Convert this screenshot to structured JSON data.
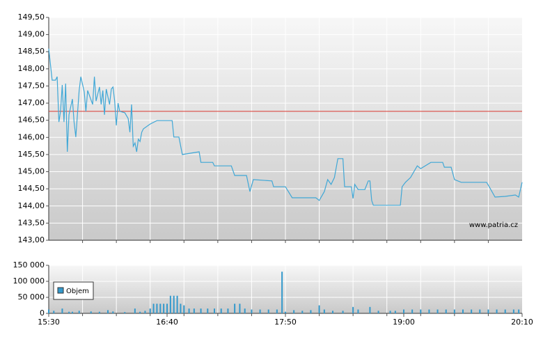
{
  "chart_data": [
    {
      "type": "line",
      "x": [
        "15:30",
        "15:32",
        "15:34",
        "15:35",
        "15:36",
        "15:37",
        "15:38",
        "15:39",
        "15:40",
        "15:41",
        "15:42",
        "15:44",
        "15:45",
        "15:46",
        "15:48",
        "15:49",
        "15:51",
        "15:52",
        "15:53",
        "15:56",
        "15:57",
        "15:58",
        "16:00",
        "16:01",
        "16:02",
        "16:03",
        "16:04",
        "16:06",
        "16:07",
        "16:08",
        "16:09",
        "16:10",
        "16:11",
        "16:12",
        "16:15",
        "16:17",
        "16:18",
        "16:19",
        "16:20",
        "16:21",
        "16:22",
        "16:23",
        "16:24",
        "16:25",
        "16:26",
        "16:30",
        "16:34",
        "16:43",
        "16:44",
        "16:47",
        "16:49",
        "16:59",
        "17:00",
        "17:07",
        "17:08",
        "17:18",
        "17:20",
        "17:27",
        "17:29",
        "17:31",
        "17:42",
        "17:43",
        "17:50",
        "17:54",
        "18:08",
        "18:10",
        "18:13",
        "18:15",
        "18:17",
        "18:19",
        "18:21",
        "18:24",
        "18:25",
        "18:29",
        "18:30",
        "18:31",
        "18:33",
        "18:37",
        "18:39",
        "18:40",
        "18:41",
        "18:42",
        "18:58",
        "18:59",
        "19:01",
        "19:04",
        "19:08",
        "19:10",
        "19:16",
        "19:23",
        "19:24",
        "19:28",
        "19:30",
        "19:34",
        "19:49",
        "19:51",
        "19:54",
        "20:00",
        "20:06",
        "20:08",
        "20:10"
      ],
      "series": [
        {
          "color": "#3fa7d6",
          "values": [
            148.59,
            147.67,
            147.67,
            147.77,
            146.45,
            146.76,
            147.53,
            146.45,
            147.57,
            145.58,
            146.66,
            147.12,
            146.45,
            146.01,
            147.37,
            147.77,
            147.33,
            146.76,
            147.37,
            146.96,
            147.77,
            147.06,
            147.47,
            146.96,
            147.37,
            146.66,
            147.41,
            146.96,
            147.41,
            147.47,
            147.06,
            146.35,
            147.0,
            146.76,
            146.72,
            146.55,
            146.15,
            146.96,
            145.74,
            145.84,
            145.58,
            145.95,
            145.88,
            146.15,
            146.25,
            146.39,
            146.49,
            146.49,
            146.01,
            146.01,
            145.5,
            145.58,
            145.27,
            145.27,
            145.17,
            145.17,
            144.89,
            144.89,
            144.42,
            144.77,
            144.73,
            144.56,
            144.56,
            144.24,
            144.24,
            144.16,
            144.42,
            144.77,
            144.63,
            144.83,
            145.38,
            145.38,
            144.56,
            144.56,
            144.22,
            144.63,
            144.48,
            144.48,
            144.73,
            144.73,
            144.16,
            144.02,
            144.02,
            144.56,
            144.69,
            144.83,
            145.17,
            145.09,
            145.27,
            145.27,
            145.13,
            145.13,
            144.77,
            144.69,
            144.69,
            144.52,
            144.26,
            144.28,
            144.32,
            144.26,
            144.69
          ]
        }
      ],
      "reference_line": {
        "value": 146.76,
        "color": "#d9362e"
      },
      "xlim": [
        "15:30",
        "20:10"
      ],
      "xgrid": [
        "15:50",
        "16:10",
        "16:30",
        "16:50",
        "17:10",
        "17:30",
        "17:50",
        "18:10",
        "18:30",
        "18:50",
        "19:10",
        "19:30",
        "19:50"
      ],
      "ylim": [
        143,
        149.5
      ],
      "yticks": [
        {
          "value": 143,
          "label": "143,00"
        },
        {
          "value": 143.5,
          "label": "143,50"
        },
        {
          "value": 144,
          "label": "144,00"
        },
        {
          "value": 144.5,
          "label": "144,50"
        },
        {
          "value": 145,
          "label": "145,00"
        },
        {
          "value": 145.5,
          "label": "145,50"
        },
        {
          "value": 146,
          "label": "146,00"
        },
        {
          "value": 146.5,
          "label": "146,50"
        },
        {
          "value": 147,
          "label": "147,00"
        },
        {
          "value": 147.5,
          "label": "147,50"
        },
        {
          "value": 148,
          "label": "148,00"
        },
        {
          "value": 148.5,
          "label": "148,50"
        },
        {
          "value": 149,
          "label": "149,00"
        },
        {
          "value": 149.5,
          "label": "149,50"
        }
      ],
      "grid": true,
      "annotation": "www.patria.cz"
    },
    {
      "type": "bar",
      "x": [
        "15:30",
        "15:33",
        "15:38",
        "15:42",
        "15:44",
        "15:48",
        "15:55",
        "16:00",
        "16:05",
        "16:08",
        "16:15",
        "16:21",
        "16:24",
        "16:27",
        "16:30",
        "16:32",
        "16:34",
        "16:36",
        "16:38",
        "16:40",
        "16:42",
        "16:44",
        "16:46",
        "16:48",
        "16:50",
        "16:53",
        "16:56",
        "17:00",
        "17:04",
        "17:08",
        "17:12",
        "17:16",
        "17:20",
        "17:23",
        "17:26",
        "17:30",
        "17:35",
        "17:40",
        "17:45",
        "17:48",
        "17:50",
        "17:55",
        "18:00",
        "18:05",
        "18:10",
        "18:13",
        "18:18",
        "18:24",
        "18:30",
        "18:33",
        "18:40",
        "18:45",
        "18:52",
        "18:55",
        "19:00",
        "19:05",
        "19:10",
        "19:15",
        "19:20",
        "19:25",
        "19:30",
        "19:35",
        "19:40",
        "19:45",
        "19:50",
        "19:55",
        "20:00",
        "20:05",
        "20:08"
      ],
      "series": [
        {
          "name": "Objem",
          "color": "#3399cc",
          "values": [
            12000,
            8000,
            15000,
            5000,
            5000,
            8000,
            6000,
            5000,
            10000,
            6000,
            4000,
            15000,
            5000,
            8000,
            15000,
            30000,
            30000,
            30000,
            30000,
            30000,
            55000,
            55000,
            55000,
            30000,
            25000,
            15000,
            15000,
            15000,
            15000,
            15000,
            15000,
            15000,
            30000,
            30000,
            15000,
            12000,
            12000,
            12000,
            12000,
            130000,
            5000,
            10000,
            8000,
            10000,
            25000,
            12000,
            8000,
            8000,
            20000,
            12000,
            20000,
            8000,
            8000,
            8000,
            12000,
            12000,
            12000,
            12000,
            12000,
            12000,
            12000,
            12000,
            12000,
            12000,
            12000,
            12000,
            12000,
            12000,
            12000
          ]
        }
      ],
      "xlim": [
        "15:30",
        "20:10"
      ],
      "xticks": [
        "15:30",
        "16:40",
        "17:50",
        "19:00",
        "20:10"
      ],
      "xgrid": [
        "15:50",
        "16:10",
        "16:30",
        "16:50",
        "17:10",
        "17:30",
        "17:50",
        "18:10",
        "18:30",
        "18:50",
        "19:10",
        "19:30",
        "19:50"
      ],
      "ylim": [
        0,
        150000
      ],
      "yticks": [
        0,
        {
          "value": 50000,
          "label": "50 000"
        },
        {
          "value": 100000,
          "label": "100 000"
        },
        {
          "value": 150000,
          "label": "150 000"
        }
      ],
      "grid": true,
      "legend": "top-left"
    }
  ]
}
